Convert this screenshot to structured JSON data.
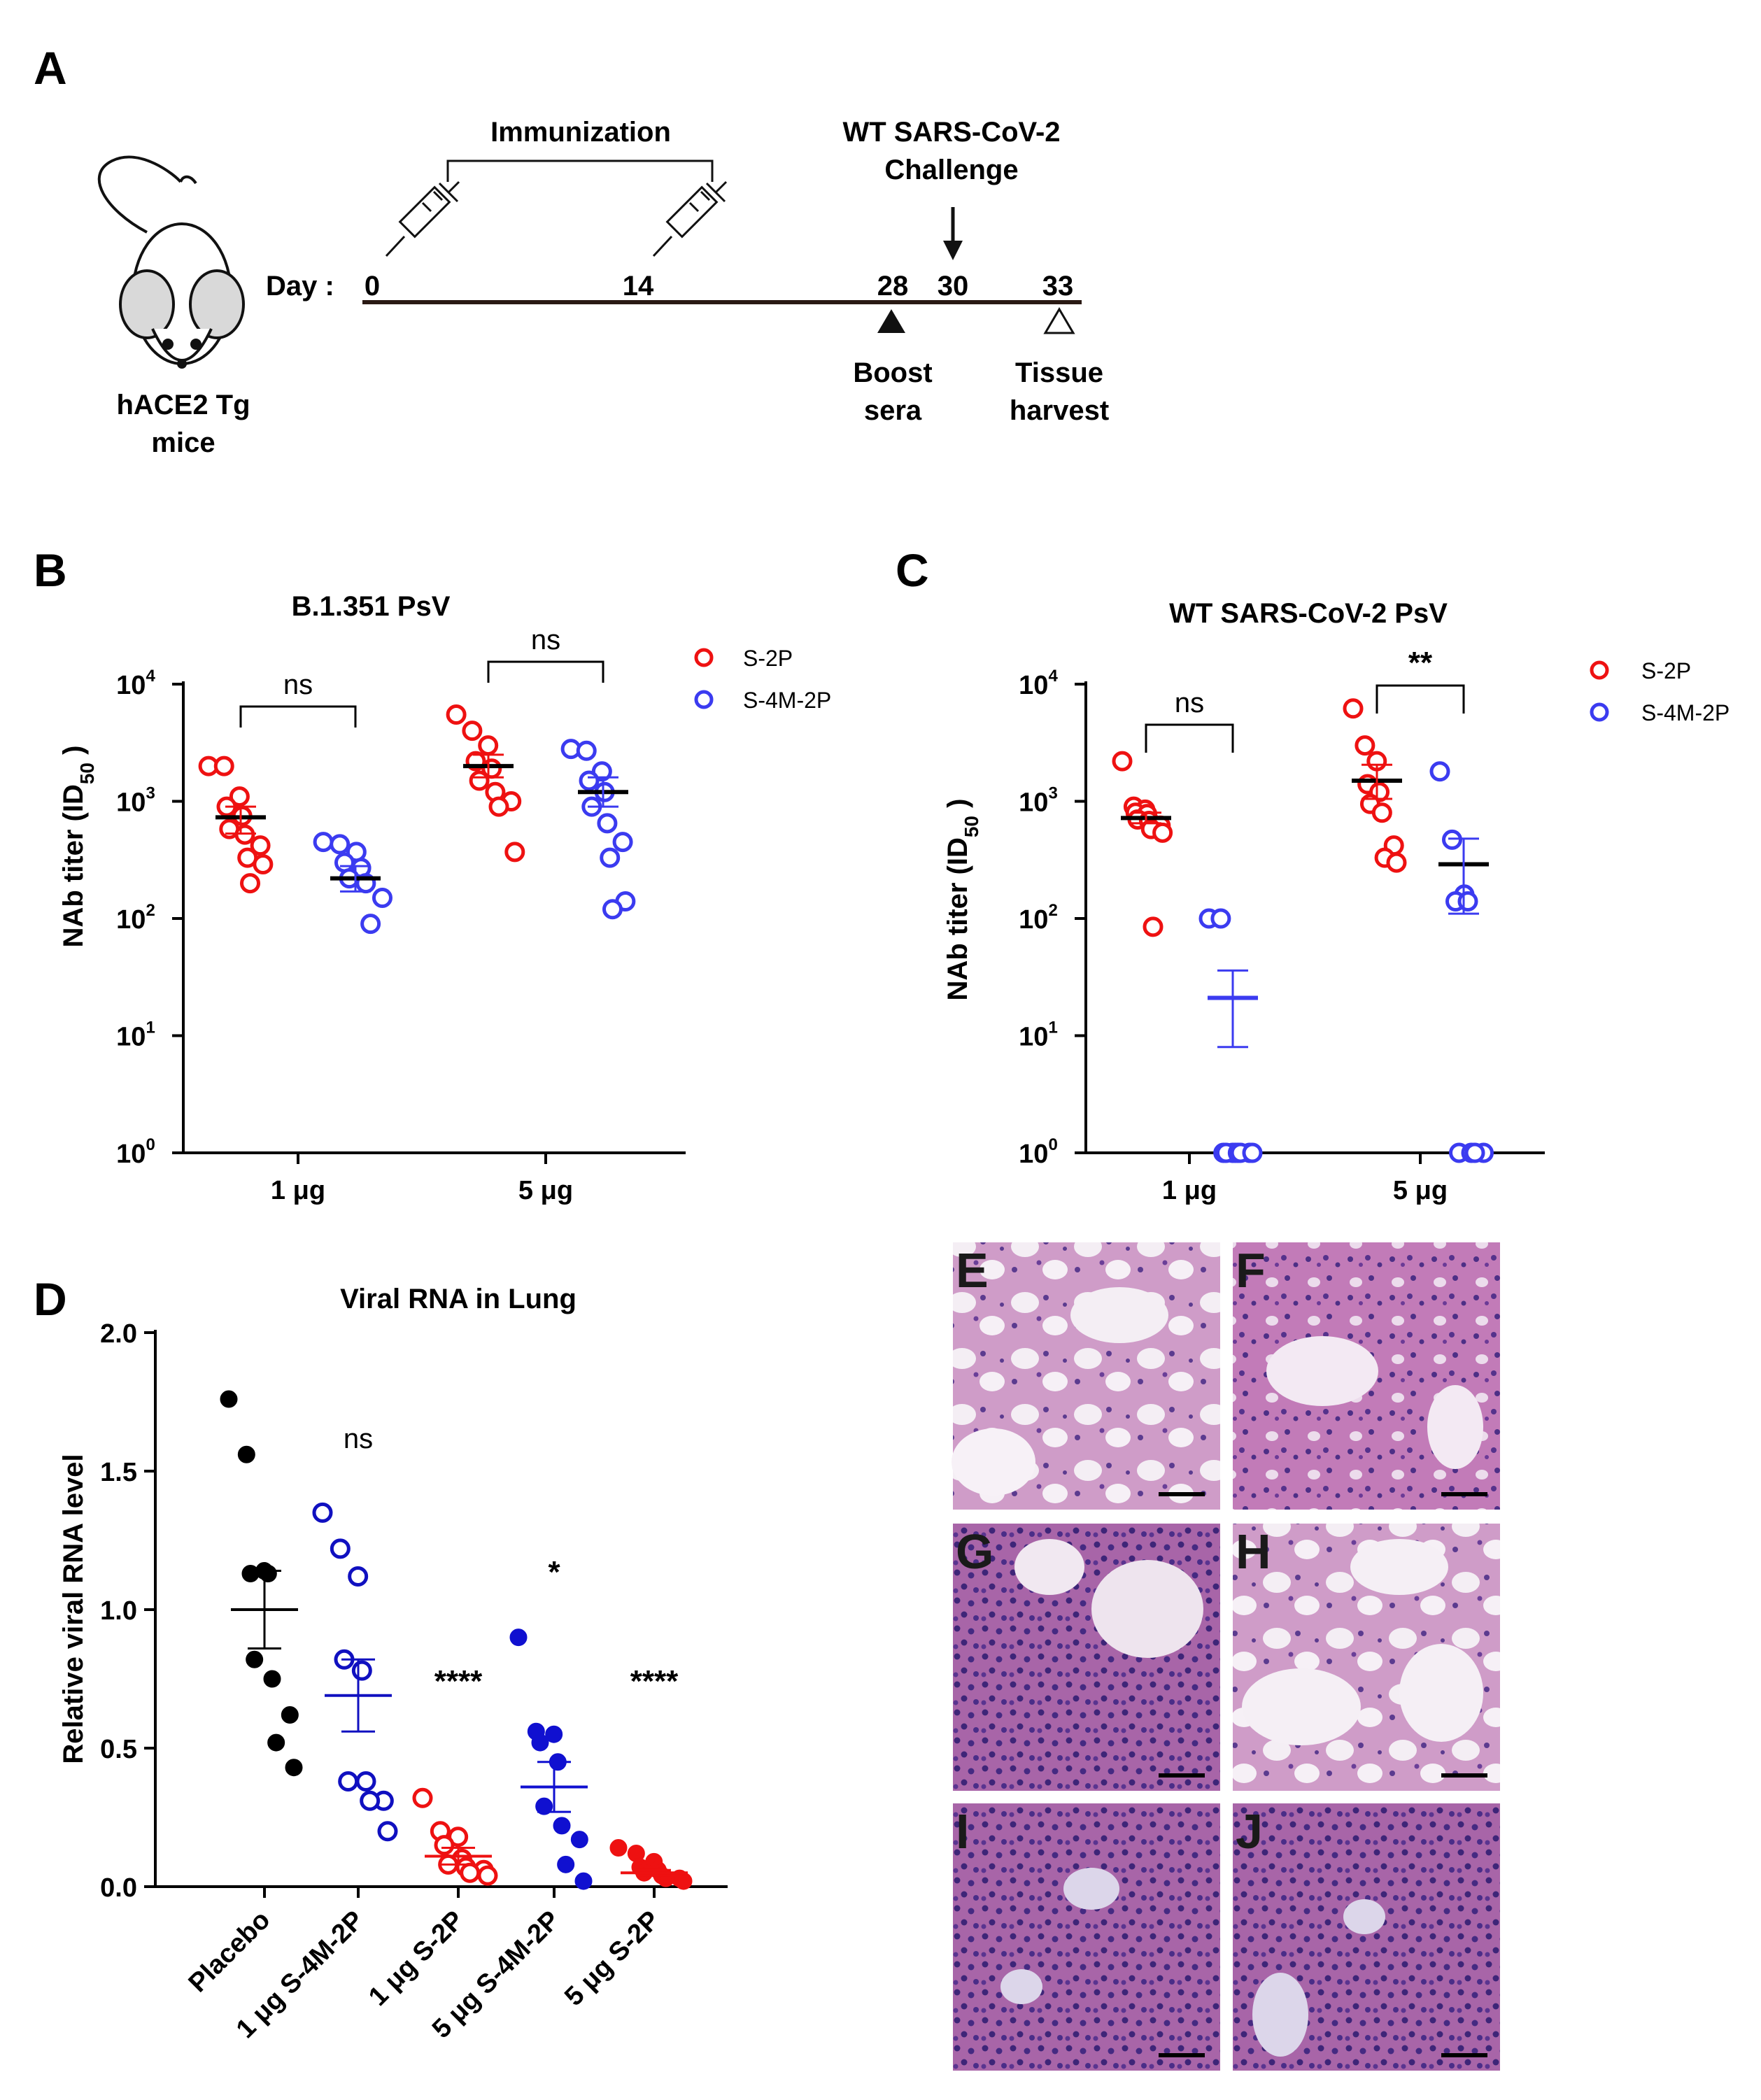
{
  "panel_letters": {
    "A": "A",
    "B": "B",
    "C": "C",
    "D": "D"
  },
  "timeline": {
    "mouse_label_line1": "hACE2 Tg",
    "mouse_label_line2": "mice",
    "day_label": "Day :",
    "days": [
      "0",
      "14",
      "28",
      "30",
      "33"
    ],
    "immunization_label": "Immunization",
    "challenge_label_line1": "WT SARS-CoV-2",
    "challenge_label_line2": "Challenge",
    "boost_label_line1": "Boost",
    "boost_label_line2": "sera",
    "tissue_label_line1": "Tissue",
    "tissue_label_line2": "harvest"
  },
  "legend": {
    "s2p": "S-2P",
    "s4m2p": "S-4M-2P",
    "color_s2p": "#ee1111",
    "color_s4m2p": "#3b3bf0"
  },
  "histology": {
    "labels": [
      "E",
      "F",
      "G",
      "H",
      "I",
      "J"
    ]
  },
  "chart_data": [
    {
      "id": "B",
      "type": "scatter",
      "title": "B.1.351 PsV",
      "ylabel": "NAb titer (ID",
      "ylabel_sub": "50",
      "ylabel_end": " )",
      "yscale": "log",
      "ylim_exp": [
        0,
        4
      ],
      "yticks": [
        {
          "base": "10",
          "exp": "0"
        },
        {
          "base": "10",
          "exp": "1"
        },
        {
          "base": "10",
          "exp": "2"
        },
        {
          "base": "10",
          "exp": "3"
        },
        {
          "base": "10",
          "exp": "4"
        }
      ],
      "categories": [
        "1  μg",
        "5  μg"
      ],
      "series": [
        {
          "name": "S-2P",
          "dose": "1  μg",
          "filled": false,
          "values": [
            2000,
            2000,
            1100,
            900,
            750,
            580,
            520,
            420,
            330,
            290,
            200
          ],
          "mean": 730,
          "sem_low": 530,
          "sem_high": 900
        },
        {
          "name": "S-4M-2P",
          "dose": "1  μg",
          "filled": false,
          "values": [
            450,
            430,
            370,
            300,
            270,
            220,
            200,
            150,
            90
          ],
          "mean": 220,
          "sem_low": 170,
          "sem_high": 280
        },
        {
          "name": "S-2P",
          "dose": "5  μg",
          "filled": false,
          "values": [
            5500,
            4000,
            3000,
            2200,
            1900,
            1500,
            1200,
            1000,
            900,
            370
          ],
          "mean": 2000,
          "sem_low": 1600,
          "sem_high": 2500
        },
        {
          "name": "S-4M-2P",
          "dose": "5  μg",
          "filled": false,
          "values": [
            2800,
            2700,
            1800,
            1500,
            1200,
            900,
            650,
            450,
            330,
            140,
            120
          ],
          "mean": 1200,
          "sem_low": 900,
          "sem_high": 1600
        }
      ],
      "annotations": [
        {
          "text": "ns",
          "group": "1  μg"
        },
        {
          "text": "ns",
          "group": "5  μg"
        }
      ]
    },
    {
      "id": "C",
      "type": "scatter",
      "title": "WT SARS-CoV-2 PsV",
      "ylabel": "NAb titer (ID",
      "ylabel_sub": "50",
      "ylabel_end": " )",
      "yscale": "log",
      "ylim_exp": [
        0,
        4
      ],
      "yticks": [
        {
          "base": "10",
          "exp": "0"
        },
        {
          "base": "10",
          "exp": "1"
        },
        {
          "base": "10",
          "exp": "2"
        },
        {
          "base": "10",
          "exp": "3"
        },
        {
          "base": "10",
          "exp": "4"
        }
      ],
      "categories": [
        "1  μg",
        "5  μg"
      ],
      "series": [
        {
          "name": "S-2P",
          "dose": "1  μg",
          "filled": false,
          "values": [
            2200,
            900,
            850,
            800,
            780,
            700,
            680,
            620,
            580,
            540,
            85
          ],
          "mean": 720,
          "sem_low": 650,
          "sem_high": 800
        },
        {
          "name": "S-4M-2P",
          "dose": "1  μg",
          "filled": false,
          "values": [
            100,
            100,
            1,
            1,
            1,
            1,
            1,
            1,
            1,
            1
          ],
          "mean": 21,
          "sem_low": 8,
          "sem_high": 36
        },
        {
          "name": "S-2P",
          "dose": "5  μg",
          "filled": false,
          "values": [
            6200,
            3000,
            2200,
            1400,
            1200,
            950,
            800,
            420,
            330,
            300
          ],
          "mean": 1500,
          "sem_low": 1050,
          "sem_high": 2050
        },
        {
          "name": "S-4M-2P",
          "dose": "5  μg",
          "filled": false,
          "values": [
            1800,
            470,
            160,
            140,
            140,
            1,
            1,
            1,
            1
          ],
          "mean": 290,
          "sem_low": 110,
          "sem_high": 480
        }
      ],
      "annotations": [
        {
          "text": "ns",
          "group": "1  μg"
        },
        {
          "text": "**",
          "group": "5  μg"
        }
      ]
    },
    {
      "id": "D",
      "type": "scatter",
      "title": "Viral RNA in Lung",
      "ylabel": "Relative viral RNA level",
      "yscale": "linear",
      "ylim": [
        0,
        2.0
      ],
      "yticks": [
        "0.0",
        "0.5",
        "1.0",
        "1.5",
        "2.0"
      ],
      "categories": [
        "Placebo",
        "1 μg S-4M-2P",
        "1 μg S-2P",
        "5 μg S-4M-2P",
        "5 μg S-2P"
      ],
      "series": [
        {
          "name": "Placebo",
          "color": "#000000",
          "filled": true,
          "values": [
            1.76,
            1.56,
            1.14,
            1.13,
            1.13,
            0.82,
            0.75,
            0.62,
            0.52,
            0.43
          ],
          "mean": 1.0,
          "sem_low": 0.86,
          "sem_high": 1.14
        },
        {
          "name": "1 μg S-4M-2P",
          "color": "#1010c0",
          "filled": false,
          "values": [
            1.35,
            1.22,
            1.12,
            0.82,
            0.78,
            0.38,
            0.38,
            0.31,
            0.31,
            0.2
          ],
          "mean": 0.69,
          "sem_low": 0.56,
          "sem_high": 0.82
        },
        {
          "name": "1 μg S-2P",
          "color": "#ee1111",
          "filled": false,
          "values": [
            0.32,
            0.2,
            0.18,
            0.15,
            0.1,
            0.08,
            0.07,
            0.06,
            0.05,
            0.04
          ],
          "mean": 0.11,
          "sem_low": 0.08,
          "sem_high": 0.14
        },
        {
          "name": "5 μg S-4M-2P",
          "color": "#1010d0",
          "filled": true,
          "values": [
            0.9,
            0.56,
            0.55,
            0.52,
            0.45,
            0.29,
            0.22,
            0.17,
            0.08,
            0.02
          ],
          "mean": 0.36,
          "sem_low": 0.27,
          "sem_high": 0.45
        },
        {
          "name": "5 μg S-2P",
          "color": "#ee1111",
          "filled": true,
          "values": [
            0.14,
            0.12,
            0.09,
            0.07,
            0.06,
            0.05,
            0.04,
            0.03,
            0.03,
            0.02
          ],
          "mean": 0.05,
          "sem_low": 0.04,
          "sem_high": 0.06
        }
      ],
      "annotations": [
        {
          "text": "ns",
          "group": "1 μg S-4M-2P"
        },
        {
          "text": "****",
          "group": "1 μg S-2P"
        },
        {
          "text": "*",
          "group": "5 μg S-4M-2P"
        },
        {
          "text": "****",
          "group": "5 μg S-2P"
        }
      ]
    }
  ]
}
